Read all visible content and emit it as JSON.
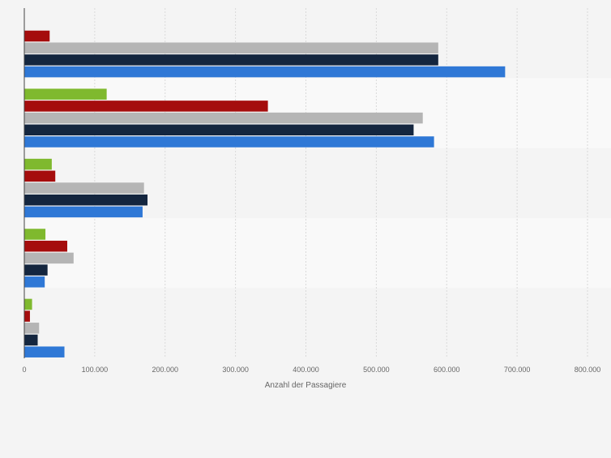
{
  "chart_data": {
    "type": "bar",
    "orientation": "horizontal",
    "xlabel": "Anzahl der Passagiere",
    "xlim": [
      0,
      800000
    ],
    "xticks": [
      0,
      100000,
      200000,
      300000,
      400000,
      500000,
      600000,
      700000,
      800000
    ],
    "xtick_labels": [
      "0",
      "100.000",
      "200.000",
      "300.000",
      "400.000",
      "500.000",
      "600.000",
      "700.000",
      "800.000"
    ],
    "grid": "vertical dashed",
    "groups": 5,
    "series": [
      {
        "color": "#7fb92e",
        "values": [
          null,
          117000,
          39000,
          30000,
          11000
        ]
      },
      {
        "color": "#a50d0d",
        "values": [
          36000,
          346000,
          44000,
          61000,
          8000
        ]
      },
      {
        "color": "#b5b5b5",
        "values": [
          588000,
          566000,
          170000,
          70000,
          21000
        ]
      },
      {
        "color": "#14263f",
        "values": [
          588000,
          553000,
          175000,
          33000,
          19000
        ]
      },
      {
        "color": "#2f78d6",
        "values": [
          683000,
          582000,
          168000,
          29000,
          57000
        ]
      }
    ]
  }
}
